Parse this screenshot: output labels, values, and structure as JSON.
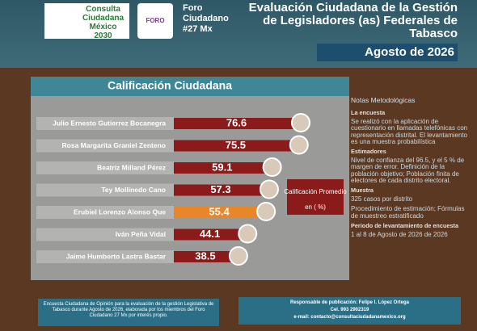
{
  "header": {
    "logo_text": "Consulta Ciudadana México 2030",
    "foro_badge": "FORO",
    "foro_text": "Foro Ciudadano #27 Mx",
    "title": "Evaluación Ciudadana de la Gestión de Legisladores (as) Federales de Tabasco",
    "date": "Agosto de 2026"
  },
  "chart_data": {
    "type": "bar",
    "orientation": "horizontal",
    "title": "Calificación Ciudadana",
    "categories": [
      "Julio Ernesto Gutierrez Bocanegra",
      "Rosa Margarita Graniel Zenteno",
      "Beatriz Milland Pérez",
      "Tey Mollinedo Cano",
      "Erubiel Lorenzo Alonso Que",
      "Iván Peña Vidal",
      "Jaime Humberto Lastra Bastar"
    ],
    "values": [
      76.6,
      75.5,
      59.1,
      57.3,
      55.4,
      44.1,
      38.5
    ],
    "colors": [
      "#8b1a1a",
      "#8b1a1a",
      "#8b1a1a",
      "#8b1a1a",
      "#e8872a",
      "#8b1a1a",
      "#8b1a1a"
    ],
    "legend_label": "Calificación Promedio",
    "legend_unit": "en ( %)"
  },
  "notes": {
    "title": "Notas Metodológicas",
    "sections": [
      {
        "heading": "La encuesta",
        "text": [
          "Se realizó con la aplicación de cuestionario en llamadas telefónicas con representación distrital. El levantamiento es una muestra probabilística"
        ]
      },
      {
        "heading": "Estimadores",
        "text": [
          "Nivel de confianza del 96.5, y el 5 % de margen de error. Definición de la población objetivo; Población finita de electores de cada distrito electoral."
        ]
      },
      {
        "heading": "Muestra",
        "text": [
          "325 casos por distrito",
          "Procedimiento de estimación; Fórmulas de muestreo estratificado"
        ]
      },
      {
        "heading": "Periodo de levantamiento de encuesta",
        "text": [
          "1 al 8 de Agosto de 2026 de 2026"
        ]
      }
    ]
  },
  "footer": {
    "left": "Encuesta Ciudadana de Opinión para la evaluación de la gestión Legislativa de Tabasco durante Agosto de 2026, elaborada por los miembros del Foro Ciudadano 27 Mx por interés propio.",
    "right": [
      "Responsable de publicación: Felipe I. López Ortega",
      "Cel. 993 2902319",
      "e-mail: contacto@consultaciudadanamexico.org"
    ]
  }
}
